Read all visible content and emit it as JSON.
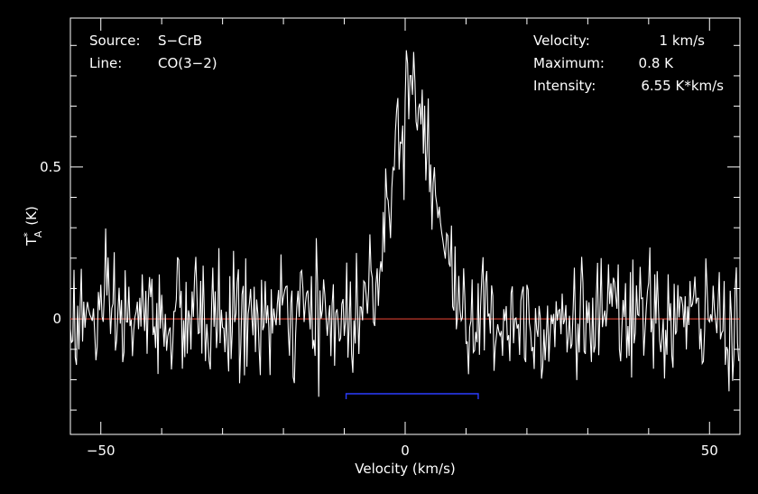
{
  "chart_data": {
    "type": "line",
    "title": "",
    "xlabel": "Velocity (km/s)",
    "ylabel": "T",
    "ylabel_sup": "*",
    "ylabel_sub": "A",
    "ylabel_unit": "(K)",
    "xlim": [
      -55,
      55
    ],
    "ylim": [
      -0.38,
      0.99
    ],
    "x_ticks": [
      {
        "value": -50,
        "label": "−50"
      },
      {
        "value": 0,
        "label": "0"
      },
      {
        "value": 50,
        "label": "50"
      }
    ],
    "y_ticks": [
      {
        "value": 0,
        "label": "0"
      },
      {
        "value": 0.5,
        "label": "0.5"
      }
    ],
    "grid": false,
    "baseline": {
      "value": 0,
      "color": "#c0392b"
    },
    "window": {
      "x_start": -9.7,
      "x_end": 12.0,
      "color": "#2a3cff"
    },
    "series": [
      {
        "color": "#ffffff",
        "line": {
          "amplitude": 0.78,
          "center": 1.2,
          "fwhm": 8.0
        },
        "noise_rms": 0.1,
        "x_start": -55,
        "x_step": 0.2
      }
    ],
    "info": {
      "source_label": "Source:",
      "source_value": "S−CrB",
      "line_label": "Line:",
      "line_value": "CO(3−2)",
      "velocity_label": "Velocity:",
      "velocity_value": "1 km/s",
      "maximum_label": "Maximum:",
      "maximum_value": "0.8 K",
      "intensity_label": "Intensity:",
      "intensity_value": "6.55 K*km/s"
    }
  }
}
